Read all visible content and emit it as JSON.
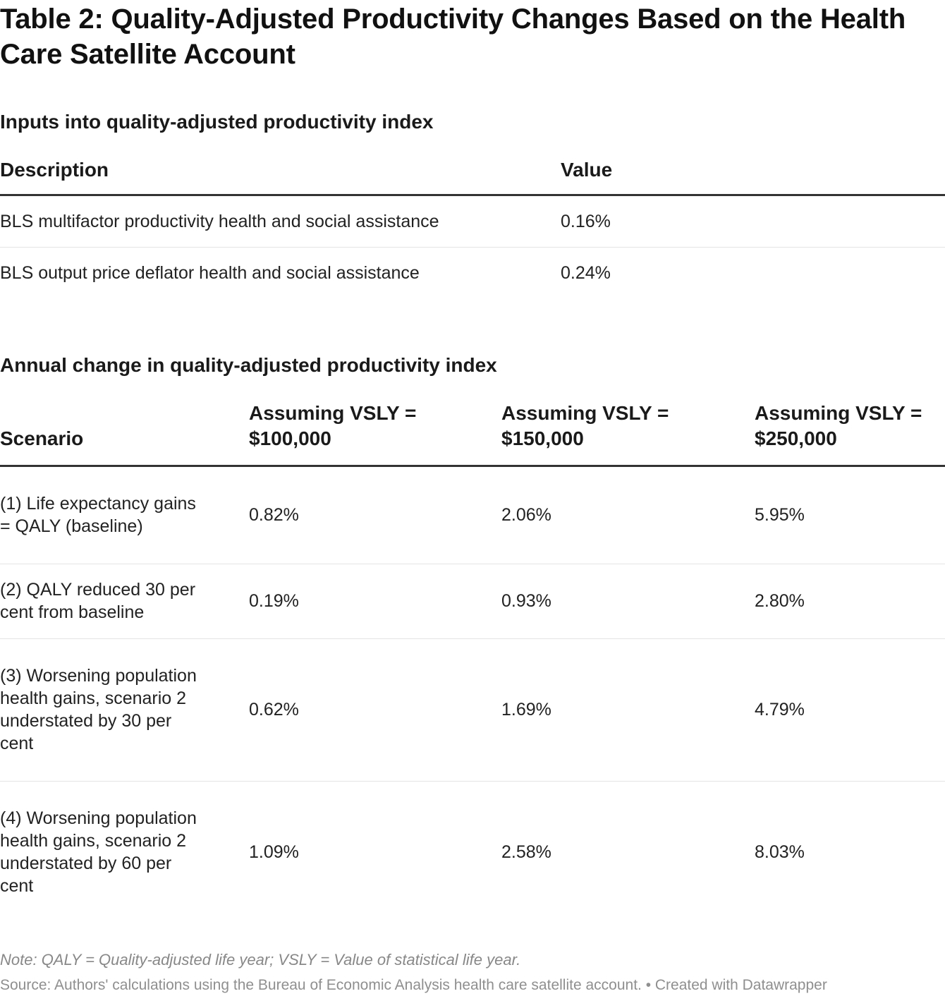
{
  "title": "Table 2: Quality-Adjusted Productivity Changes Based on the Health Care Satellite Account",
  "inputs_table": {
    "heading": "Inputs into quality-adjusted productivity index",
    "columns": [
      "Description",
      "Value"
    ],
    "rows": [
      {
        "description": "BLS multifactor productivity health and social assistance",
        "value": "0.16%"
      },
      {
        "description": "BLS output price deflator health and social assistance",
        "value": "0.24%"
      }
    ]
  },
  "annual_table": {
    "heading": "Annual change in quality-adjusted productivity index",
    "columns": [
      "Scenario",
      "Assuming VSLY = $100,000",
      "Assuming VSLY = $150,000",
      "Assuming VSLY = $250,000"
    ],
    "rows": [
      {
        "scenario": "(1) Life expectancy gains = QALY (baseline)",
        "v100k": "0.82%",
        "v150k": "2.06%",
        "v250k": "5.95%"
      },
      {
        "scenario": "(2) QALY reduced 30 per cent from baseline",
        "v100k": "0.19%",
        "v150k": "0.93%",
        "v250k": "2.80%"
      },
      {
        "scenario": "(3) Worsening population health gains, scenario 2 understated by 30 per cent",
        "v100k": "0.62%",
        "v150k": "1.69%",
        "v250k": "4.79%"
      },
      {
        "scenario": "(4) Worsening population health gains, scenario 2 understated by 60 per cent",
        "v100k": "1.09%",
        "v150k": "2.58%",
        "v250k": "8.03%"
      }
    ]
  },
  "note": "Note: QALY = Quality-adjusted life year; VSLY = Value of statistical life year.",
  "source": "Source: Authors' calculations using the Bureau of Economic Analysis health care satellite account. • Created with Datawrapper"
}
